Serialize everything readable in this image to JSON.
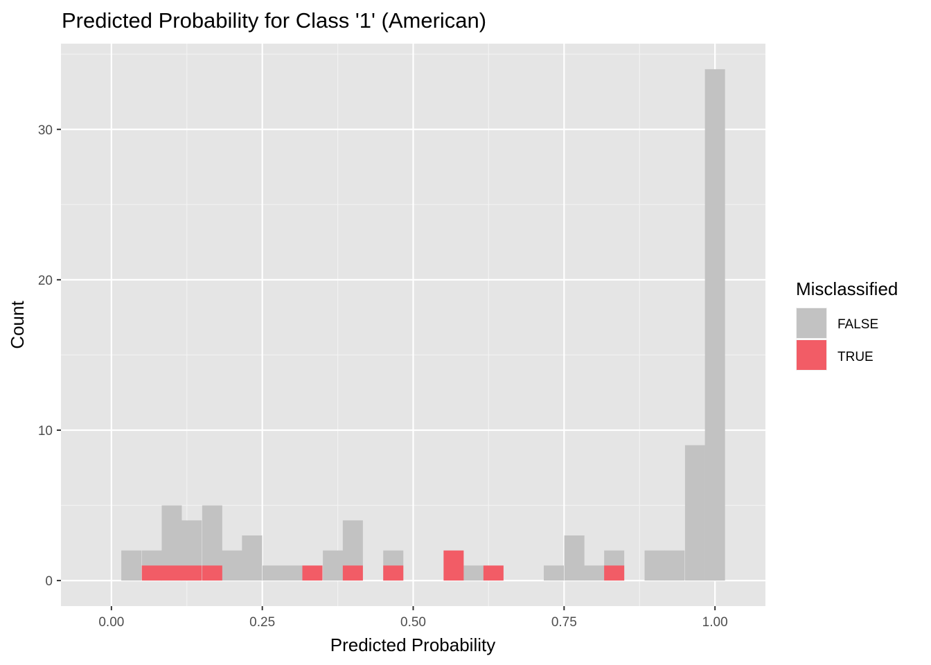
{
  "chart_data": {
    "type": "bar",
    "title": "Predicted Probability for Class '1' (American)",
    "xlabel": "Predicted Probability",
    "ylabel": "Count",
    "xlim": [
      -0.0836,
      1.0836
    ],
    "ylim": [
      -1.7,
      35.7
    ],
    "x_ticks": [
      0.0,
      0.25,
      0.5,
      0.75,
      1.0
    ],
    "x_tick_labels": [
      "0.00",
      "0.25",
      "0.50",
      "0.75",
      "1.00"
    ],
    "y_ticks": [
      0,
      10,
      20,
      30
    ],
    "y_tick_labels": [
      "0",
      "10",
      "20",
      "30"
    ],
    "grid": true,
    "legend": {
      "title": "Misclassified",
      "position": "right",
      "entries": [
        "FALSE",
        "TRUE"
      ]
    },
    "bin_width": 0.0333,
    "series": [
      {
        "name": "FALSE",
        "color": "#c2c2c2",
        "bins": [
          {
            "x": 0.033,
            "count": 2
          },
          {
            "x": 0.067,
            "count": 2
          },
          {
            "x": 0.1,
            "count": 5
          },
          {
            "x": 0.133,
            "count": 4
          },
          {
            "x": 0.167,
            "count": 5
          },
          {
            "x": 0.2,
            "count": 2
          },
          {
            "x": 0.233,
            "count": 3
          },
          {
            "x": 0.267,
            "count": 1
          },
          {
            "x": 0.3,
            "count": 1
          },
          {
            "x": 0.367,
            "count": 2
          },
          {
            "x": 0.4,
            "count": 4
          },
          {
            "x": 0.467,
            "count": 2
          },
          {
            "x": 0.6,
            "count": 1
          },
          {
            "x": 0.733,
            "count": 1
          },
          {
            "x": 0.767,
            "count": 3
          },
          {
            "x": 0.8,
            "count": 1
          },
          {
            "x": 0.833,
            "count": 2
          },
          {
            "x": 0.9,
            "count": 2
          },
          {
            "x": 0.933,
            "count": 2
          },
          {
            "x": 0.967,
            "count": 9
          },
          {
            "x": 1.0,
            "count": 34
          }
        ]
      },
      {
        "name": "TRUE",
        "color": "#f25c66",
        "bins": [
          {
            "x": 0.067,
            "count": 1
          },
          {
            "x": 0.1,
            "count": 1
          },
          {
            "x": 0.133,
            "count": 1
          },
          {
            "x": 0.167,
            "count": 1
          },
          {
            "x": 0.333,
            "count": 1
          },
          {
            "x": 0.4,
            "count": 1
          },
          {
            "x": 0.467,
            "count": 1
          },
          {
            "x": 0.567,
            "count": 2
          },
          {
            "x": 0.633,
            "count": 1
          },
          {
            "x": 0.833,
            "count": 1
          }
        ]
      }
    ]
  }
}
